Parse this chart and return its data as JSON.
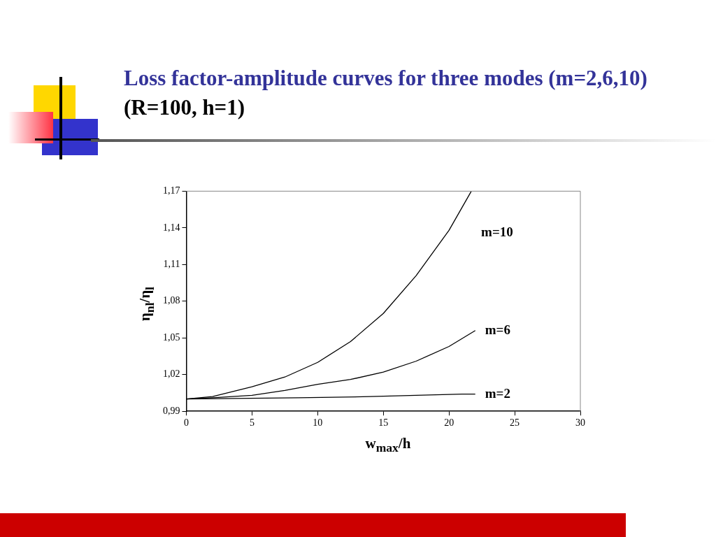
{
  "chart_data": {
    "type": "line",
    "title": "Loss factor-amplitude curves for three modes (m=2,6,10)",
    "subtitle": "(R=100, h=1)",
    "xlabel": "w$_{max}$/h",
    "ylabel": "η$_{nl}$/η$_{l}$",
    "xlim": [
      0,
      30
    ],
    "xticks": [
      0,
      5,
      10,
      15,
      20,
      25,
      30
    ],
    "ylim": [
      0.99,
      1.17
    ],
    "yticks": [
      {
        "value": 0.99,
        "label": "0,99"
      },
      {
        "value": 1.02,
        "label": "1,02"
      },
      {
        "value": 1.05,
        "label": "1,05"
      },
      {
        "value": 1.08,
        "label": "1,08"
      },
      {
        "value": 1.11,
        "label": "1,11"
      },
      {
        "value": 1.14,
        "label": "1,14"
      },
      {
        "value": 1.17,
        "label": "1,17"
      }
    ],
    "grid": false,
    "legend": false,
    "marker": "none",
    "line_style": "solid",
    "series": [
      {
        "name": "m=10",
        "color": "#000000",
        "x": [
          0,
          2,
          5,
          7.5,
          10,
          12.5,
          15,
          17.5,
          20,
          21.7
        ],
        "values": [
          1.0,
          1.002,
          1.01,
          1.018,
          1.03,
          1.047,
          1.07,
          1.101,
          1.138,
          1.17
        ]
      },
      {
        "name": "m=6",
        "color": "#000000",
        "x": [
          0,
          2,
          5,
          7.5,
          10,
          12.5,
          15,
          17.5,
          20,
          22
        ],
        "values": [
          1.0,
          1.001,
          1.003,
          1.007,
          1.012,
          1.016,
          1.022,
          1.031,
          1.043,
          1.056
        ]
      },
      {
        "name": "m=2",
        "color": "#000000",
        "x": [
          0,
          8.5,
          14,
          17.5,
          21,
          22
        ],
        "values": [
          1.0,
          1.001,
          1.002,
          1.003,
          1.004,
          1.004
        ]
      }
    ]
  }
}
